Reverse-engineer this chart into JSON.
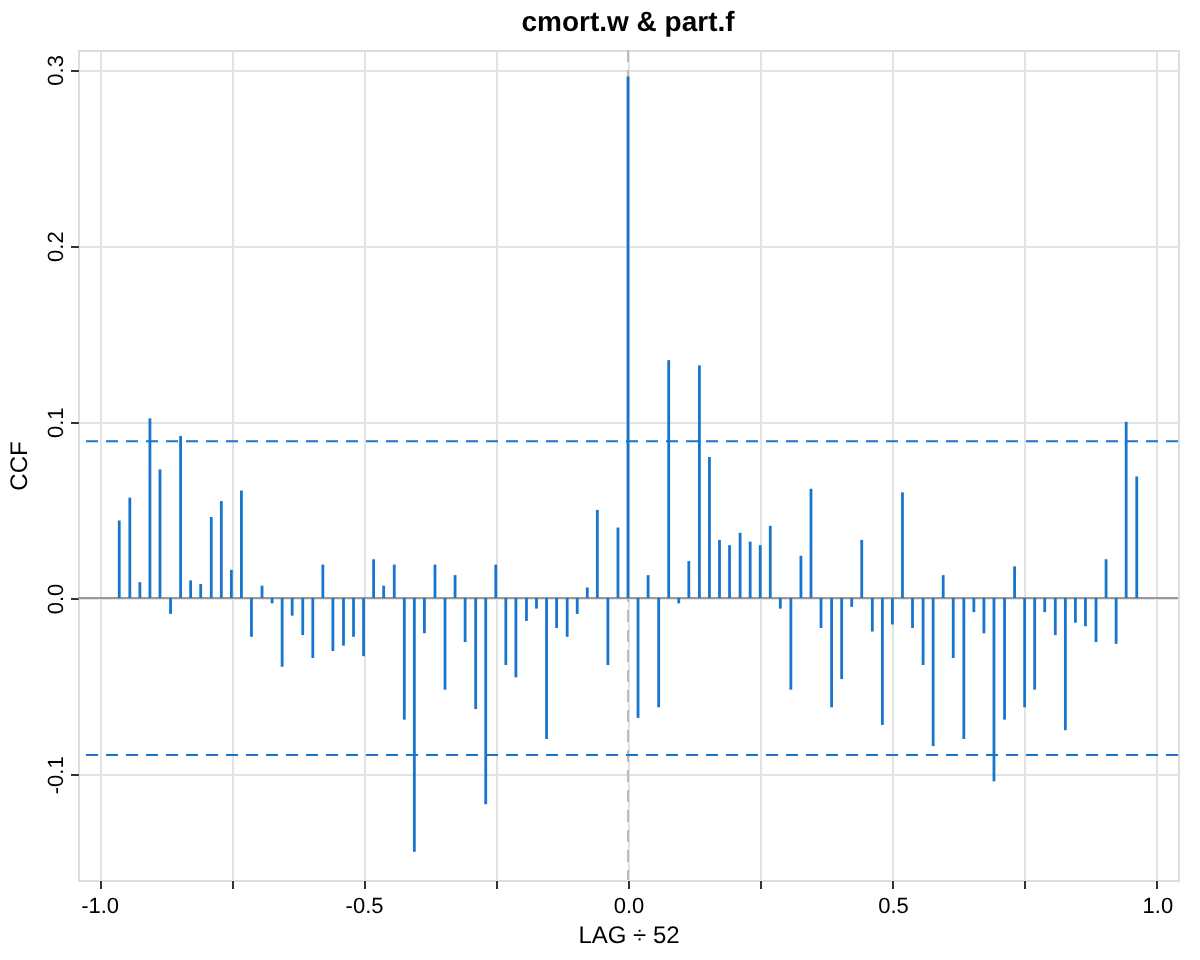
{
  "chart_data": {
    "type": "bar",
    "title": "cmort.w  &  part.f",
    "xlabel": "LAG ÷ 52",
    "ylabel": "CCF",
    "color": "#1874cd",
    "x": [
      -0.962,
      -0.942,
      -0.923,
      -0.904,
      -0.885,
      -0.865,
      -0.846,
      -0.827,
      -0.808,
      -0.788,
      -0.769,
      -0.75,
      -0.731,
      -0.712,
      -0.692,
      -0.673,
      -0.654,
      -0.635,
      -0.615,
      -0.596,
      -0.577,
      -0.558,
      -0.538,
      -0.519,
      -0.5,
      -0.481,
      -0.462,
      -0.442,
      -0.423,
      -0.404,
      -0.385,
      -0.365,
      -0.346,
      -0.327,
      -0.308,
      -0.288,
      -0.269,
      -0.25,
      -0.231,
      -0.212,
      -0.192,
      -0.173,
      -0.154,
      -0.135,
      -0.115,
      -0.096,
      -0.077,
      -0.058,
      -0.038,
      -0.019,
      0,
      0.019,
      0.038,
      0.058,
      0.077,
      0.096,
      0.115,
      0.135,
      0.154,
      0.173,
      0.192,
      0.212,
      0.231,
      0.25,
      0.269,
      0.288,
      0.308,
      0.327,
      0.346,
      0.365,
      0.385,
      0.404,
      0.423,
      0.442,
      0.462,
      0.481,
      0.5,
      0.519,
      0.538,
      0.558,
      0.577,
      0.596,
      0.615,
      0.635,
      0.654,
      0.673,
      0.692,
      0.712,
      0.731,
      0.75,
      0.769,
      0.788,
      0.808,
      0.827,
      0.846,
      0.865,
      0.885,
      0.904,
      0.923,
      0.942,
      0.962
    ],
    "values": [
      0.044,
      0.057,
      0.009,
      0.102,
      0.073,
      -0.009,
      0.092,
      0.01,
      0.008,
      0.046,
      0.055,
      0.016,
      0.061,
      -0.022,
      0.007,
      -0.003,
      -0.039,
      -0.01,
      -0.021,
      -0.034,
      0.019,
      -0.03,
      -0.027,
      -0.022,
      -0.033,
      0.022,
      0.007,
      0.019,
      -0.069,
      -0.144,
      -0.02,
      0.019,
      -0.052,
      0.013,
      -0.025,
      -0.063,
      -0.117,
      0.019,
      -0.038,
      -0.045,
      -0.013,
      -0.006,
      -0.08,
      -0.017,
      -0.022,
      -0.009,
      0.006,
      0.05,
      -0.038,
      0.04,
      0.296,
      -0.068,
      0.013,
      -0.062,
      0.135,
      -0.003,
      0.021,
      0.132,
      0.08,
      0.033,
      0.03,
      0.037,
      0.032,
      0.03,
      0.041,
      -0.006,
      -0.052,
      0.024,
      0.062,
      -0.017,
      -0.062,
      -0.046,
      -0.005,
      0.033,
      -0.019,
      -0.072,
      -0.015,
      0.06,
      -0.017,
      -0.038,
      -0.084,
      0.013,
      -0.034,
      -0.08,
      -0.008,
      -0.02,
      -0.104,
      -0.069,
      0.018,
      -0.062,
      -0.052,
      -0.008,
      -0.021,
      -0.075,
      -0.014,
      -0.016,
      -0.025,
      0.022,
      -0.026,
      0.1,
      0.069
    ],
    "xlim": [
      -1.04,
      1.04
    ],
    "ylim": [
      -0.16,
      0.311
    ],
    "xticks": [
      {
        "value": -1,
        "label": "-1.0"
      },
      {
        "value": -0.75,
        "label": null
      },
      -0.5,
      {
        "value": -0.25,
        "label": null
      },
      {
        "value": 0,
        "label": "0.0"
      },
      {
        "value": 0.25,
        "label": null
      },
      0.5,
      {
        "value": 0.75,
        "label": null
      },
      {
        "value": 1,
        "label": "1.0"
      }
    ],
    "yticks": [
      -0.1,
      {
        "value": 0,
        "label": "0.0"
      },
      0.1,
      0.2,
      0.3
    ],
    "grid": true,
    "ref_lines": [
      {
        "axis": "x",
        "value": 0,
        "color": "#bbbbbb",
        "line_style": "dashed"
      },
      {
        "axis": "y",
        "value": 0,
        "color": "#999999",
        "line_style": "solid"
      },
      {
        "axis": "y",
        "value": 0.089,
        "color": "#1874cd",
        "line_style": "dashed"
      },
      {
        "axis": "y",
        "value": -0.089,
        "color": "#1874cd",
        "line_style": "dashed"
      }
    ]
  }
}
